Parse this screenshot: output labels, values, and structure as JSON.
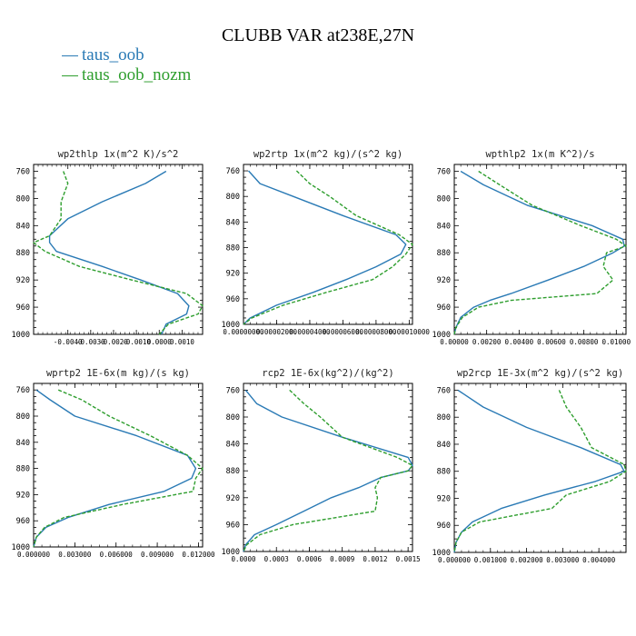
{
  "page": {
    "title": "CLUBB VAR at238E,27N",
    "legend": [
      {
        "label": "taus_oob",
        "color": "#2a7ab5"
      },
      {
        "label": "taus_oob_nozm",
        "color": "#2e9e2e"
      }
    ]
  },
  "chart_data": [
    {
      "type": "line",
      "title": "wp2thlp  1x(m^2 K)/s^2",
      "ylim": [
        1000,
        750
      ],
      "yticks": [
        760,
        800,
        840,
        880,
        920,
        960,
        1000
      ],
      "xlim": [
        -0.0055,
        0.0019
      ],
      "xticks": [
        -0.004,
        -0.003,
        -0.002,
        -0.001,
        0.0,
        0.001
      ],
      "xtick_labels": [
        "-0.0040",
        "-0.0030",
        "-0.0020",
        "-0.0010",
        "0.0000",
        "0.0010"
      ],
      "y": [
        760,
        778,
        805,
        830,
        855,
        865,
        878,
        900,
        920,
        940,
        958,
        970,
        985,
        1000
      ],
      "series": [
        {
          "name": "taus_oob",
          "color": "#2a7ab5",
          "dash": "",
          "values": [
            0.0003,
            -0.0006,
            -0.0025,
            -0.004,
            -0.0048,
            -0.0048,
            -0.0045,
            -0.0025,
            -0.0008,
            0.0008,
            0.0013,
            0.0012,
            0.0003,
            0.0001
          ]
        },
        {
          "name": "taus_oob_nozm",
          "color": "#2e9e2e",
          "dash": "4,2",
          "values": [
            -0.0042,
            -0.004,
            -0.0043,
            -0.0043,
            -0.0048,
            -0.0055,
            -0.005,
            -0.0035,
            -0.0012,
            0.0012,
            0.0019,
            0.0017,
            0.0004,
            0.0
          ]
        }
      ]
    },
    {
      "type": "line",
      "title": "wp2rtp  1x(m^2 kg)/(s^2 kg)",
      "ylim": [
        1000,
        750
      ],
      "yticks": [
        760,
        800,
        840,
        880,
        920,
        960,
        1000
      ],
      "xlim": [
        0,
        0.000102
      ],
      "xticks": [
        0,
        2e-05,
        4e-05,
        6e-05,
        8e-05,
        0.0001
      ],
      "xtick_labels": [
        "0.00000000",
        "0.00002000",
        "0.00004000",
        "0.00006000",
        "0.00008000",
        "0.00010000"
      ],
      "y": [
        760,
        780,
        800,
        830,
        860,
        875,
        890,
        910,
        930,
        950,
        970,
        990,
        1000
      ],
      "series": [
        {
          "name": "taus_oob",
          "color": "#2a7ab5",
          "dash": "",
          "values": [
            3e-06,
            1e-05,
            3e-05,
            6e-05,
            9.2e-05,
            9.8e-05,
            9.5e-05,
            8e-05,
            6.2e-05,
            4.2e-05,
            2e-05,
            4e-06,
            0.0
          ]
        },
        {
          "name": "taus_oob_nozm",
          "color": "#2e9e2e",
          "dash": "4,2",
          "values": [
            3.2e-05,
            4e-05,
            5.2e-05,
            6.8e-05,
            9.4e-05,
            0.000102,
            9.8e-05,
            9e-05,
            7.8e-05,
            5e-05,
            2.4e-05,
            5e-06,
            0.0
          ]
        }
      ]
    },
    {
      "type": "line",
      "title": "wpthlp2  1x(m K^2)/s",
      "ylim": [
        1000,
        750
      ],
      "yticks": [
        760,
        800,
        840,
        880,
        920,
        960,
        1000
      ],
      "xlim": [
        0,
        0.0106
      ],
      "xticks": [
        0,
        0.002,
        0.004,
        0.006,
        0.008,
        0.01
      ],
      "xtick_labels": [
        "0.00000",
        "0.00200",
        "0.00400",
        "0.00600",
        "0.00800",
        "0.01000"
      ],
      "y": [
        760,
        780,
        810,
        840,
        860,
        870,
        880,
        900,
        920,
        940,
        950,
        960,
        975,
        990,
        1000
      ],
      "series": [
        {
          "name": "taus_oob",
          "color": "#2a7ab5",
          "dash": "",
          "values": [
            0.0004,
            0.0018,
            0.0045,
            0.0085,
            0.0104,
            0.0105,
            0.0098,
            0.008,
            0.0058,
            0.0035,
            0.0022,
            0.0012,
            0.0004,
            0.0001,
            0.0
          ]
        },
        {
          "name": "taus_oob_nozm",
          "color": "#2e9e2e",
          "dash": "4,2",
          "values": [
            0.0015,
            0.0028,
            0.0048,
            0.0078,
            0.01,
            0.0106,
            0.0094,
            0.0092,
            0.0098,
            0.0088,
            0.0035,
            0.0015,
            0.0005,
            0.0001,
            0.0
          ]
        }
      ]
    },
    {
      "type": "line",
      "title": "wprtp2  1E-6x(m kg)/(s kg)",
      "ylim": [
        1000,
        750
      ],
      "yticks": [
        760,
        800,
        840,
        880,
        920,
        960,
        1000
      ],
      "xlim": [
        0,
        0.0123
      ],
      "xticks": [
        0,
        0.003,
        0.006,
        0.009,
        0.012
      ],
      "xtick_labels": [
        "0.000000",
        "0.003000",
        "0.006000",
        "0.009000",
        "0.012000"
      ],
      "y": [
        760,
        775,
        800,
        830,
        860,
        880,
        895,
        915,
        935,
        955,
        970,
        985,
        1000
      ],
      "series": [
        {
          "name": "taus_oob",
          "color": "#2a7ab5",
          "dash": "",
          "values": [
            0.0002,
            0.0012,
            0.003,
            0.0075,
            0.0112,
            0.0118,
            0.0115,
            0.0095,
            0.0055,
            0.0025,
            0.0009,
            0.0002,
            0.0
          ]
        },
        {
          "name": "taus_oob_nozm",
          "color": "#2e9e2e",
          "dash": "4,2",
          "values": [
            0.0018,
            0.0035,
            0.0055,
            0.0085,
            0.0112,
            0.0123,
            0.0118,
            0.0116,
            0.0065,
            0.0022,
            0.0008,
            0.0002,
            0.0
          ]
        }
      ]
    },
    {
      "type": "line",
      "title": "rcp2  1E-6x(kg^2)/(kg^2)",
      "ylim": [
        1000,
        750
      ],
      "yticks": [
        760,
        800,
        840,
        880,
        920,
        960,
        1000
      ],
      "xlim": [
        0,
        0.00154
      ],
      "xticks": [
        0,
        0.0003,
        0.0006,
        0.0009,
        0.0012,
        0.0015
      ],
      "xtick_labels": [
        "0.0000",
        "0.0003",
        "0.0006",
        "0.0009",
        "0.0012",
        "0.0015"
      ],
      "y": [
        760,
        780,
        800,
        830,
        860,
        872,
        880,
        890,
        905,
        920,
        940,
        960,
        975,
        990,
        1000
      ],
      "series": [
        {
          "name": "taus_oob",
          "color": "#2a7ab5",
          "dash": "",
          "values": [
            2e-05,
            0.00012,
            0.00035,
            0.0009,
            0.0015,
            0.00154,
            0.0015,
            0.00125,
            0.00105,
            0.0008,
            0.00055,
            0.0003,
            0.0001,
            2e-05,
            0.0
          ]
        },
        {
          "name": "taus_oob_nozm",
          "color": "#2e9e2e",
          "dash": "4,2",
          "values": [
            0.00042,
            0.00055,
            0.0007,
            0.0009,
            0.0014,
            0.00154,
            0.0015,
            0.00125,
            0.0012,
            0.00122,
            0.0012,
            0.00045,
            0.00015,
            3e-05,
            0.0
          ]
        }
      ]
    },
    {
      "type": "line",
      "title": "wp2rcp  1E-3x(m^2 kg)/(s^2 kg)",
      "ylim": [
        1000,
        750
      ],
      "yticks": [
        760,
        800,
        840,
        880,
        920,
        960,
        1000
      ],
      "xlim": [
        0,
        0.00475
      ],
      "xticks": [
        0,
        0.001,
        0.002,
        0.003,
        0.004
      ],
      "xtick_labels": [
        "0.000000",
        "0.001000",
        "0.002000",
        "0.003000",
        "0.004000"
      ],
      "y": [
        760,
        785,
        815,
        845,
        870,
        880,
        895,
        915,
        935,
        955,
        970,
        985,
        1000
      ],
      "series": [
        {
          "name": "taus_oob",
          "color": "#2a7ab5",
          "dash": "",
          "values": [
            0.0001,
            0.0008,
            0.002,
            0.0035,
            0.0046,
            0.0047,
            0.0039,
            0.0025,
            0.0013,
            0.0005,
            0.0002,
            5e-05,
            0.0
          ]
        },
        {
          "name": "taus_oob_nozm",
          "color": "#2e9e2e",
          "dash": "4,2",
          "values": [
            0.0029,
            0.0031,
            0.0035,
            0.0038,
            0.0047,
            0.00475,
            0.0043,
            0.0031,
            0.0027,
            0.0007,
            0.0002,
            5e-05,
            0.0
          ]
        }
      ]
    }
  ]
}
